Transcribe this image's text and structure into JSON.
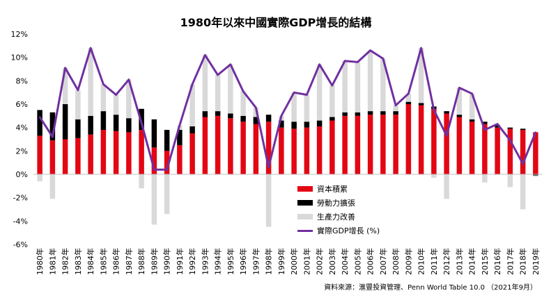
{
  "chart_data": {
    "type": "bar",
    "title": "1980年以來中國實際GDP增長的結構",
    "source": "資料來源：滙豐投資管理、Penn World Table 10.0 （2021年9月）",
    "categories": [
      "1980年",
      "1981年",
      "1982年",
      "1983年",
      "1984年",
      "1985年",
      "1986年",
      "1987年",
      "1988年",
      "1989年",
      "1990年",
      "1991年",
      "1992年",
      "1993年",
      "1994年",
      "1995年",
      "1996年",
      "1997年",
      "1998年",
      "1999年",
      "2000年",
      "2001年",
      "2002年",
      "2003年",
      "2004年",
      "2005年",
      "2006年",
      "2007年",
      "2008年",
      "2009年",
      "2010年",
      "2011年",
      "2012年",
      "2013年",
      "2014年",
      "2015年",
      "2016年",
      "2017年",
      "2018年",
      "2019年"
    ],
    "ylim": [
      -6,
      12
    ],
    "yticks": [
      "-6%",
      "-4%",
      "-2%",
      "0%",
      "2%",
      "4%",
      "6%",
      "8%",
      "10%",
      "12%"
    ],
    "ytick_values": [
      -6,
      -4,
      -2,
      0,
      2,
      4,
      6,
      8,
      10,
      12
    ],
    "series": [
      {
        "name": "資本積累",
        "color": "#e30613",
        "kind": "bar",
        "values": [
          3.3,
          2.9,
          3.0,
          3.1,
          3.4,
          3.8,
          3.7,
          3.6,
          3.8,
          2.3,
          2.0,
          2.5,
          3.5,
          4.9,
          5.0,
          4.8,
          4.5,
          4.3,
          4.5,
          4.0,
          3.9,
          4.0,
          4.1,
          4.6,
          5.0,
          5.0,
          5.1,
          5.1,
          5.1,
          6.0,
          5.9,
          5.6,
          5.2,
          4.9,
          4.5,
          4.3,
          4.0,
          3.9,
          3.8,
          3.6
        ]
      },
      {
        "name": "勞動力擴張",
        "color": "#000000",
        "kind": "bar",
        "values": [
          2.2,
          2.4,
          3.0,
          1.6,
          1.6,
          1.6,
          1.4,
          1.2,
          1.8,
          2.4,
          1.8,
          1.3,
          0.6,
          0.5,
          0.4,
          0.4,
          0.5,
          0.6,
          0.6,
          0.6,
          0.6,
          0.5,
          0.5,
          0.3,
          0.3,
          0.3,
          0.3,
          0.3,
          0.3,
          0.2,
          0.2,
          0.2,
          0.2,
          0.2,
          0.2,
          0.2,
          0.2,
          0.1,
          0.1,
          -0.1
        ]
      },
      {
        "name": "生產力改善",
        "color": "#d9d9d9",
        "kind": "bar",
        "values": [
          -0.6,
          -2.1,
          3.1,
          2.5,
          5.8,
          2.3,
          1.7,
          3.3,
          -1.2,
          -4.3,
          -3.4,
          0.4,
          3.6,
          4.8,
          3.1,
          4.2,
          2.1,
          0.8,
          -4.5,
          0.4,
          2.5,
          2.3,
          4.8,
          2.7,
          4.4,
          4.3,
          5.2,
          4.5,
          0.5,
          0.7,
          4.7,
          -0.3,
          -2.1,
          2.3,
          2.2,
          -0.7,
          0.1,
          -1.1,
          -3.0,
          -0.1
        ]
      },
      {
        "name": "實際GDP增長 (%)",
        "color": "#7030a0",
        "kind": "line",
        "values": [
          4.9,
          3.2,
          9.1,
          7.2,
          10.8,
          7.7,
          6.8,
          8.1,
          4.4,
          0.4,
          0.4,
          4.2,
          7.7,
          10.2,
          8.5,
          9.4,
          7.1,
          5.7,
          0.6,
          5.0,
          7.0,
          6.8,
          9.4,
          7.6,
          9.7,
          9.6,
          10.6,
          9.9,
          5.9,
          6.9,
          10.8,
          5.5,
          3.3,
          7.4,
          6.9,
          3.8,
          4.3,
          2.9,
          0.9,
          3.6
        ]
      }
    ]
  }
}
